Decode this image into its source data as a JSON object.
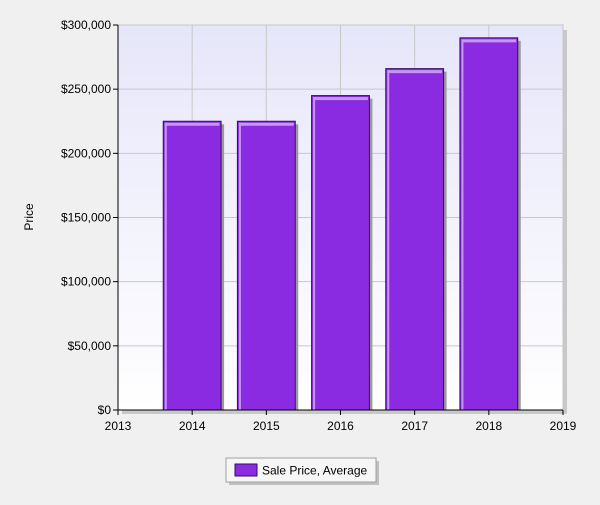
{
  "chart_data": {
    "type": "bar",
    "categories": [
      "2014",
      "2015",
      "2016",
      "2017",
      "2018"
    ],
    "series": [
      {
        "name": "Sale Price, Average",
        "values": [
          225000,
          225000,
          245000,
          266000,
          290000
        ]
      }
    ],
    "x_ticks": [
      "2013",
      "2014",
      "2015",
      "2016",
      "2017",
      "2018",
      "2019"
    ],
    "y_ticks": [
      "$0",
      "$50,000",
      "$100,000",
      "$150,000",
      "$200,000",
      "$250,000",
      "$300,000"
    ],
    "ylabel": "Price",
    "xlabel": "",
    "title": "",
    "ylim": [
      0,
      300000
    ],
    "grid": true,
    "legend_position": "bottom-center",
    "colors": {
      "bar_fill": "#8a2be2",
      "bar_edge_light": "#c49af0",
      "bar_edge_dark": "#3a0a66",
      "plot_bg_top": "#e6e6fa",
      "plot_bg_bottom": "#ffffff",
      "page_bg": "#f0f0f0",
      "grid": "#c8c8c8"
    }
  }
}
